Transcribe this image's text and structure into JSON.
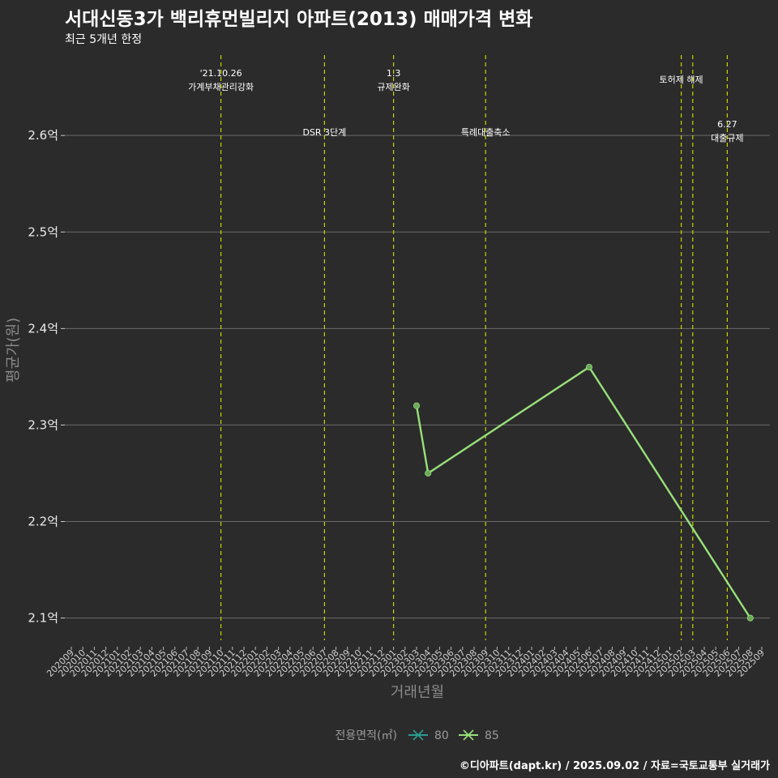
{
  "header": {
    "title": "서대신동3가 백리휴먼빌리지 아파트(2013) 매매가격 변화",
    "subtitle": "최근 5개년 한정"
  },
  "footer": {
    "caption": "©디아파트(dapt.kr) / 2025.09.02 / 자료=국토교통부 실거래가"
  },
  "colors": {
    "background": "#2b2b2b",
    "grid": "#6a6a6a",
    "event_line": "#c8d400",
    "series_80": "#2a9d8f",
    "series_85": "#98e07a"
  },
  "chart_data": {
    "type": "line",
    "xlabel": "거래년월",
    "ylabel": "평균가(원)",
    "x_categories": [
      "202009",
      "202010",
      "202011",
      "202012",
      "202101",
      "202102",
      "202103",
      "202104",
      "202105",
      "202106",
      "202107",
      "202108",
      "202109",
      "202110",
      "202111",
      "202112",
      "202201",
      "202202",
      "202203",
      "202204",
      "202205",
      "202206",
      "202207",
      "202208",
      "202209",
      "202210",
      "202211",
      "202212",
      "202301",
      "202302",
      "202303",
      "202304",
      "202305",
      "202306",
      "202307",
      "202308",
      "202309",
      "202310",
      "202311",
      "202312",
      "202401",
      "202402",
      "202403",
      "202404",
      "202405",
      "202406",
      "202407",
      "202408",
      "202409",
      "202410",
      "202411",
      "202412",
      "202501",
      "202502",
      "202503",
      "202504",
      "202505",
      "202506",
      "202507",
      "202508",
      "202509"
    ],
    "y_ticks": [
      {
        "value": 2.1,
        "label": "2.1억"
      },
      {
        "value": 2.2,
        "label": "2.2억"
      },
      {
        "value": 2.3,
        "label": "2.3억"
      },
      {
        "value": 2.4,
        "label": "2.4억"
      },
      {
        "value": 2.5,
        "label": "2.5억"
      },
      {
        "value": 2.6,
        "label": "2.6억"
      }
    ],
    "ylim": [
      2.077,
      2.69
    ],
    "grid": true,
    "legend": {
      "title": "전용면적(㎡)",
      "position": "bottom",
      "entries": [
        {
          "label": "80",
          "color": "#2a9d8f"
        },
        {
          "label": "85",
          "color": "#98e07a"
        }
      ]
    },
    "series": [
      {
        "name": "85",
        "color": "#98e07a",
        "points": [
          {
            "x": "202303",
            "y": 2.32
          },
          {
            "x": "202304",
            "y": 2.25
          },
          {
            "x": "202406",
            "y": 2.36
          },
          {
            "x": "202508",
            "y": 2.1
          }
        ]
      }
    ],
    "events": [
      {
        "x": "202110",
        "lines": [
          "'21.10.26",
          "가계부채관리강화"
        ],
        "level": "top"
      },
      {
        "x": "202207",
        "lines": [
          "DSR 3단계"
        ],
        "level": "mid"
      },
      {
        "x": "202301",
        "lines": [
          "1.3",
          "규제완화"
        ],
        "level": "top"
      },
      {
        "x": "202309",
        "lines": [
          "특례대출축소"
        ],
        "level": "mid"
      },
      {
        "x": "202502",
        "lines": [
          "토허제 해제"
        ],
        "level": "top"
      },
      {
        "x": "202503",
        "lines": [],
        "level": "none"
      },
      {
        "x": "202506",
        "lines": [
          "6.27",
          "대출규제"
        ],
        "level": "mid2"
      }
    ]
  }
}
